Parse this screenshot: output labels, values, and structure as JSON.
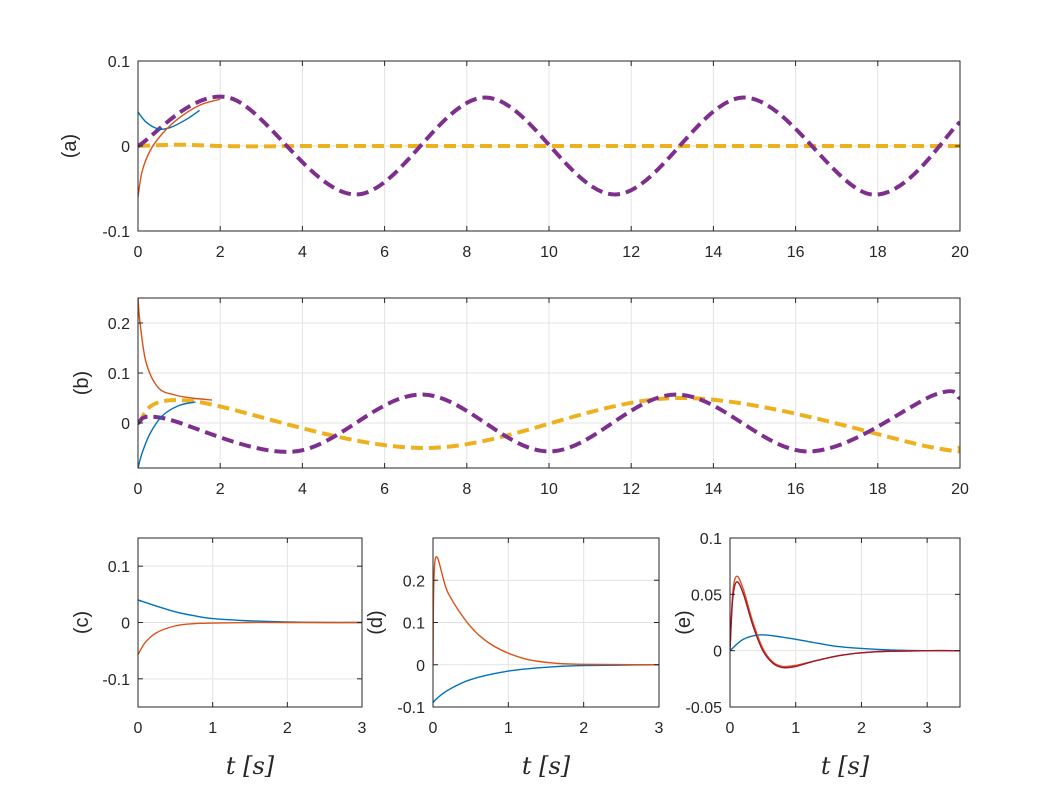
{
  "chart_data": [
    {
      "id": "a",
      "type": "line",
      "ylabel": "(a)",
      "xlabel": "",
      "xlim": [
        0,
        20
      ],
      "ylim": [
        -0.1,
        0.1
      ],
      "xticks": [
        0,
        2,
        4,
        6,
        8,
        10,
        12,
        14,
        16,
        18,
        20
      ],
      "yticks": [
        -0.1,
        0,
        0.1
      ],
      "ytick_labels": [
        "-0.1",
        "0",
        "0.1"
      ],
      "grid": true,
      "series": [
        {
          "color": "#EDB120",
          "style": "dashed",
          "x": [
            0,
            1,
            2,
            3,
            3.8,
            5,
            6,
            7,
            8,
            9,
            10,
            11,
            12,
            13,
            14,
            15,
            16.2,
            17,
            18,
            19,
            20
          ],
          "y": [
            0.0,
            0.0015,
            0.0,
            -0.0005,
            0.0,
            0.0,
            0.0,
            0.0,
            0.0,
            0.0,
            0.0,
            0.0,
            0.0,
            0.0,
            0.0,
            0.0,
            0.0,
            0.0,
            0.0,
            0.0,
            0.0
          ]
        },
        {
          "color": "#7E2F8E",
          "style": "dashed",
          "x": [
            0,
            2.2,
            5.3,
            8.45,
            11.6,
            14.75,
            17.85,
            20
          ],
          "y": [
            0.0,
            0.057,
            -0.057,
            0.057,
            -0.057,
            0.057,
            -0.057,
            0.028
          ]
        },
        {
          "color": "#0072BD",
          "style": "solid",
          "x": [
            0,
            0.2,
            0.5,
            0.8,
            1.2,
            1.5
          ],
          "y": [
            0.04,
            0.028,
            0.02,
            0.022,
            0.032,
            0.042
          ]
        },
        {
          "color": "#D95319",
          "style": "solid",
          "x": [
            0,
            0.1,
            0.3,
            0.6,
            1.0,
            1.5,
            2.0
          ],
          "y": [
            -0.06,
            -0.03,
            -0.005,
            0.015,
            0.033,
            0.048,
            0.055
          ]
        }
      ]
    },
    {
      "id": "b",
      "type": "line",
      "ylabel": "(b)",
      "xlabel": "",
      "xlim": [
        0,
        20
      ],
      "ylim": [
        -0.09,
        0.25
      ],
      "xticks": [
        0,
        2,
        4,
        6,
        8,
        10,
        12,
        14,
        16,
        18,
        20
      ],
      "yticks": [
        0,
        0.1,
        0.2
      ],
      "ytick_labels": [
        "0",
        "0.1",
        "0.2"
      ],
      "grid": true,
      "series": [
        {
          "color": "#EDB120",
          "style": "dashed",
          "x": [
            0,
            1.2,
            7,
            13.2,
            19.4,
            20
          ],
          "y": [
            0.0,
            0.045,
            -0.05,
            0.05,
            -0.05,
            -0.048
          ]
        },
        {
          "color": "#7E2F8E",
          "style": "dashed",
          "x": [
            0,
            0.6,
            3.8,
            6.9,
            10,
            13.1,
            16.3,
            19.4,
            20
          ],
          "y": [
            0.0,
            0.01,
            -0.057,
            0.057,
            -0.057,
            0.057,
            -0.057,
            0.057,
            0.05
          ]
        },
        {
          "color": "#0072BD",
          "style": "solid",
          "x": [
            0,
            0.1,
            0.3,
            0.6,
            1.0,
            1.4
          ],
          "y": [
            -0.09,
            -0.06,
            -0.02,
            0.015,
            0.035,
            0.042
          ]
        },
        {
          "color": "#D95319",
          "style": "solid",
          "x": [
            0,
            0.05,
            0.2,
            0.5,
            0.9,
            1.3,
            1.8
          ],
          "y": [
            0.25,
            0.2,
            0.12,
            0.07,
            0.056,
            0.05,
            0.046
          ]
        }
      ]
    },
    {
      "id": "c",
      "type": "line",
      "ylabel": "(c)",
      "xlabel": "t [s]",
      "xlim": [
        0,
        3
      ],
      "ylim": [
        -0.15,
        0.15
      ],
      "xticks": [
        0,
        1,
        2,
        3
      ],
      "yticks": [
        -0.1,
        0,
        0.1
      ],
      "ytick_labels": [
        "-0.1",
        "0",
        "0.1"
      ],
      "grid": true,
      "series": [
        {
          "color": "#0072BD",
          "style": "solid",
          "x": [
            0,
            0.25,
            0.5,
            0.75,
            1,
            1.5,
            2,
            2.5,
            3
          ],
          "y": [
            0.04,
            0.029,
            0.019,
            0.012,
            0.007,
            0.003,
            0.001,
            0.0,
            0.0
          ]
        },
        {
          "color": "#D95319",
          "style": "solid",
          "x": [
            0,
            0.1,
            0.25,
            0.5,
            0.75,
            1,
            1.5,
            2,
            3
          ],
          "y": [
            -0.057,
            -0.035,
            -0.018,
            -0.006,
            -0.002,
            -0.001,
            0.0,
            0.0,
            0.0
          ]
        }
      ]
    },
    {
      "id": "d",
      "type": "line",
      "ylabel": "(d)",
      "xlabel": "t [s]",
      "xlim": [
        0,
        3
      ],
      "ylim": [
        -0.1,
        0.3
      ],
      "xticks": [
        0,
        1,
        2,
        3
      ],
      "yticks": [
        -0.1,
        0,
        0.1,
        0.2
      ],
      "ytick_labels": [
        "-0.1",
        "0",
        "0.1",
        "0.2"
      ],
      "grid": true,
      "series": [
        {
          "color": "#0072BD",
          "style": "solid",
          "x": [
            0,
            0.05,
            0.2,
            0.5,
            1,
            1.5,
            2,
            3
          ],
          "y": [
            -0.09,
            -0.08,
            -0.06,
            -0.035,
            -0.015,
            -0.006,
            -0.002,
            0.0
          ]
        },
        {
          "color": "#D95319",
          "style": "solid",
          "x": [
            0,
            0.03,
            0.2,
            0.5,
            0.8,
            1.2,
            1.6,
            2,
            3
          ],
          "y": [
            0.0,
            0.25,
            0.17,
            0.09,
            0.045,
            0.015,
            0.004,
            0.001,
            0.0
          ]
        }
      ]
    },
    {
      "id": "e",
      "type": "line",
      "ylabel": "(e)",
      "xlabel": "t [s]",
      "xlim": [
        0,
        3.5
      ],
      "ylim": [
        -0.05,
        0.1
      ],
      "xticks": [
        0,
        1,
        2,
        3
      ],
      "yticks": [
        -0.05,
        0,
        0.05,
        0.1
      ],
      "ytick_labels": [
        "-0.05",
        "0",
        "0.05",
        "0.1"
      ],
      "grid": true,
      "series": [
        {
          "color": "#0072BD",
          "style": "solid",
          "x": [
            0,
            0.2,
            0.45,
            0.8,
            1.2,
            1.6,
            2,
            2.5,
            3,
            3.5
          ],
          "y": [
            0.0,
            0.01,
            0.014,
            0.012,
            0.008,
            0.004,
            0.002,
            0.0005,
            0.0,
            0.0
          ]
        },
        {
          "color": "#D95319",
          "style": "solid",
          "x": [
            0,
            0.04,
            0.1,
            0.2,
            0.35,
            0.5,
            0.65,
            0.8,
            1.0,
            1.3,
            1.7,
            2.2,
            3,
            3.5
          ],
          "y": [
            0.0,
            0.05,
            0.066,
            0.055,
            0.025,
            0.002,
            -0.01,
            -0.014,
            -0.013,
            -0.009,
            -0.004,
            -0.001,
            0.0,
            0.0
          ]
        },
        {
          "color": "#A2142F",
          "style": "solid",
          "x": [
            0,
            0.04,
            0.1,
            0.2,
            0.35,
            0.5,
            0.65,
            0.8,
            1.0,
            1.3,
            1.7,
            2.2,
            3,
            3.5
          ],
          "y": [
            0.0,
            0.045,
            0.061,
            0.051,
            0.022,
            0.0,
            -0.011,
            -0.015,
            -0.014,
            -0.009,
            -0.004,
            -0.001,
            0.0,
            0.0
          ]
        }
      ]
    }
  ]
}
